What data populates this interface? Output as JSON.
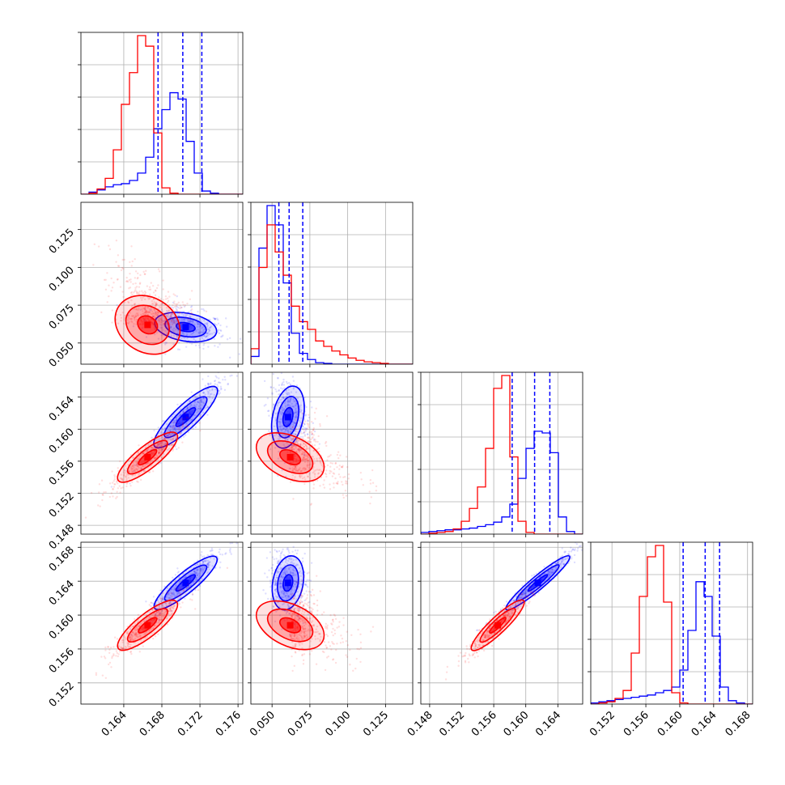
{
  "chart_data": {
    "type": "corner",
    "colors": {
      "series_a": "#0000ff",
      "series_b": "#ff0000",
      "grid": "#b0b0b0"
    },
    "series_colors": [
      "#0000ff",
      "#ff0000"
    ],
    "dimensions": [
      {
        "range": [
          0.1595,
          0.1765
        ],
        "ticks": [
          "0.164",
          "0.168",
          "0.172",
          "0.176"
        ],
        "tick_values": [
          0.164,
          0.168,
          0.172,
          0.176
        ]
      },
      {
        "range": [
          0.036,
          0.143
        ],
        "ticks": [
          "0.050",
          "0.075",
          "0.100",
          "0.125"
        ],
        "tick_values": [
          0.05,
          0.075,
          0.1,
          0.125
        ]
      },
      {
        "range": [
          0.1469,
          0.1671
        ],
        "ticks": [
          "0.148",
          "0.152",
          "0.156",
          "0.160",
          "0.164"
        ],
        "tick_values": [
          0.148,
          0.152,
          0.156,
          0.16,
          0.164
        ]
      },
      {
        "range": [
          0.1495,
          0.1686
        ],
        "ticks": [
          "0.152",
          "0.156",
          "0.160",
          "0.164",
          "0.168"
        ],
        "tick_values": [
          0.152,
          0.156,
          0.16,
          0.164,
          0.168
        ]
      }
    ],
    "quantiles_series_a": [
      [
        0.1676,
        0.1702,
        0.1722
      ],
      [
        0.0545,
        0.0613,
        0.0703
      ],
      [
        0.1583,
        0.1611,
        0.163
      ],
      [
        0.1604,
        0.163,
        0.1647
      ]
    ],
    "marginal_histograms": [
      {
        "bins": [
          0.1595,
          0.1765,
          20
        ],
        "series": [
          {
            "values": [
              0,
              2,
              4,
              7,
              9,
              10,
              13,
              20,
              35,
              62,
              80,
              96,
              90,
              50,
              20,
              3,
              1,
              0,
              0,
              0
            ]
          },
          {
            "values": [
              0,
              1,
              5,
              15,
              42,
              85,
              115,
              150,
              140,
              58,
              6,
              1,
              0,
              0,
              0,
              0,
              0,
              0,
              0,
              0
            ]
          }
        ]
      },
      {
        "bins": [
          0.036,
          0.143,
          20
        ],
        "series": [
          {
            "values": [
              10,
              150,
              205,
              180,
              105,
              40,
              14,
              6,
              2,
              1,
              0,
              0,
              0,
              0,
              0,
              0,
              0,
              0,
              0,
              0
            ]
          },
          {
            "values": [
              20,
              125,
              180,
              145,
              115,
              75,
              55,
              45,
              30,
              23,
              17,
              12,
              8,
              5,
              3,
              2,
              1,
              0,
              0,
              0
            ]
          }
        ]
      },
      {
        "bins": [
          0.1469,
          0.1671,
          20
        ],
        "series": [
          {
            "values": [
              2,
              3,
              4,
              5,
              5,
              6,
              7,
              9,
              11,
              14,
              20,
              35,
              65,
              100,
              120,
              118,
              95,
              20,
              3,
              0
            ]
          },
          {
            "values": [
              0,
              1,
              2,
              3,
              6,
              15,
              30,
              55,
              100,
              170,
              185,
              90,
              15,
              2,
              0,
              0,
              0,
              0,
              0,
              0
            ]
          }
        ]
      },
      {
        "bins": [
          0.1495,
          0.1686,
          20
        ],
        "series": [
          {
            "values": [
              1,
              2,
              3,
              4,
              5,
              6,
              7,
              8,
              10,
              12,
              15,
              30,
              65,
              108,
              95,
              60,
              15,
              3,
              1,
              0
            ]
          },
          {
            "values": [
              0,
              1,
              2,
              5,
              12,
              45,
              95,
              130,
              140,
              90,
              10,
              1,
              0,
              0,
              0,
              0,
              0,
              0,
              0,
              0
            ]
          }
        ]
      }
    ],
    "populations": [
      {
        "mean": [
          0.1705,
          0.0605,
          0.1615,
          0.1638
        ],
        "sd": [
          0.0018,
          0.0055,
          0.0022,
          0.0018
        ]
      },
      {
        "mean": [
          0.1665,
          0.062,
          0.1565,
          0.1588
        ],
        "sd": [
          0.0017,
          0.012,
          0.0018,
          0.0017
        ]
      }
    ],
    "grid": true
  }
}
